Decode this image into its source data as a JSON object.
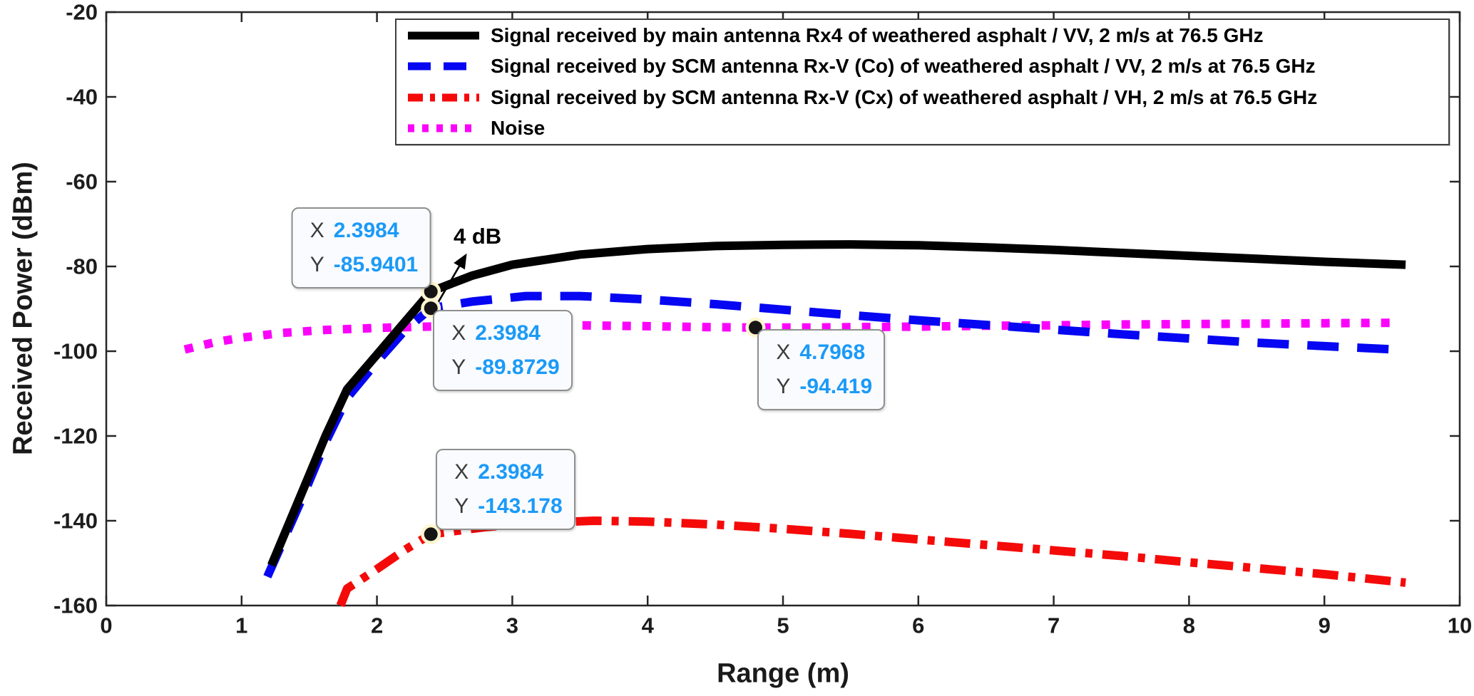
{
  "chart_data": {
    "type": "line",
    "title": "",
    "xlabel": "Range (m)",
    "ylabel": "Received Power (dBm)",
    "xlim": [
      0,
      10
    ],
    "ylim": [
      -160,
      -20
    ],
    "x_ticks": [
      0,
      1,
      2,
      3,
      4,
      5,
      6,
      7,
      8,
      9,
      10
    ],
    "y_ticks": [
      -160,
      -140,
      -120,
      -100,
      -80,
      -60,
      -40,
      -20
    ],
    "grid": false,
    "legend_position": "top-right",
    "axis_color": "#262626",
    "series": [
      {
        "name": "Signal received by main antenna Rx4 of weathered asphalt / VV, 2 m/s at 76.5 GHz",
        "color": "#000000",
        "line_style": "solid",
        "line_width": 12,
        "points": [
          [
            1.22,
            -150.5
          ],
          [
            1.45,
            -133
          ],
          [
            1.62,
            -120
          ],
          [
            1.78,
            -109
          ],
          [
            2.0,
            -100.8
          ],
          [
            2.2,
            -93.3
          ],
          [
            2.3984,
            -85.9401
          ],
          [
            2.7,
            -82.2
          ],
          [
            3.0,
            -79.6
          ],
          [
            3.5,
            -77.2
          ],
          [
            4.0,
            -75.9
          ],
          [
            4.5,
            -75.2
          ],
          [
            5.0,
            -74.9
          ],
          [
            5.5,
            -74.8
          ],
          [
            6.0,
            -75.0
          ],
          [
            6.5,
            -75.5
          ],
          [
            7.0,
            -76.1
          ],
          [
            7.5,
            -76.8
          ],
          [
            8.0,
            -77.5
          ],
          [
            8.5,
            -78.2
          ],
          [
            9.0,
            -78.9
          ],
          [
            9.6,
            -79.6
          ]
        ]
      },
      {
        "name": "Signal received by SCM antenna Rx-V (Co) of weathered asphalt / VV, 2 m/s at 76.5 GHz",
        "color": "#0606f2",
        "line_style": "dashed",
        "line_width": 12,
        "points": [
          [
            1.19,
            -153.2
          ],
          [
            1.45,
            -134.5
          ],
          [
            1.62,
            -121.5
          ],
          [
            1.78,
            -111
          ],
          [
            2.0,
            -102.5
          ],
          [
            2.2,
            -95.3
          ],
          [
            2.3984,
            -89.8729
          ],
          [
            2.7,
            -88.3
          ],
          [
            3.1,
            -87.0
          ],
          [
            3.5,
            -87.0
          ],
          [
            4.0,
            -87.8
          ],
          [
            4.5,
            -88.9
          ],
          [
            5.0,
            -90.2
          ],
          [
            5.5,
            -91.5
          ],
          [
            6.0,
            -92.7
          ],
          [
            6.5,
            -93.8
          ],
          [
            7.0,
            -94.9
          ],
          [
            7.5,
            -96.0
          ],
          [
            8.0,
            -97.0
          ],
          [
            8.5,
            -98.0
          ],
          [
            9.0,
            -98.8
          ],
          [
            9.6,
            -99.7
          ]
        ]
      },
      {
        "name": "Signal received by SCM antenna Rx-V (Cx) of weathered asphalt / VH, 2 m/s at 76.5 GHz",
        "color": "#f50a0a",
        "line_style": "dash-dot",
        "line_width": 12,
        "points": [
          [
            1.73,
            -160
          ],
          [
            1.78,
            -156
          ],
          [
            2.0,
            -151.4
          ],
          [
            2.2,
            -147
          ],
          [
            2.3984,
            -143.178
          ],
          [
            2.8,
            -141.5
          ],
          [
            3.2,
            -140.5
          ],
          [
            3.6,
            -140.0
          ],
          [
            4.0,
            -140.2
          ],
          [
            4.5,
            -140.9
          ],
          [
            5.0,
            -141.9
          ],
          [
            5.5,
            -143.1
          ],
          [
            6.0,
            -144.4
          ],
          [
            6.5,
            -145.7
          ],
          [
            7.0,
            -147.0
          ],
          [
            7.5,
            -148.3
          ],
          [
            8.0,
            -149.8
          ],
          [
            8.5,
            -151.2
          ],
          [
            9.0,
            -152.6
          ],
          [
            9.6,
            -154.6
          ]
        ]
      },
      {
        "name": "Noise",
        "color": "#fb02fb",
        "line_style": "dotted",
        "line_width": 12,
        "points": [
          [
            0.58,
            -99.6
          ],
          [
            0.8,
            -97.9
          ],
          [
            1.0,
            -96.8
          ],
          [
            1.3,
            -95.7
          ],
          [
            1.6,
            -95.0
          ],
          [
            2.0,
            -94.5
          ],
          [
            2.5,
            -94.1
          ],
          [
            3.0,
            -93.9
          ],
          [
            3.5,
            -93.9
          ],
          [
            4.0,
            -94.1
          ],
          [
            4.4,
            -94.3
          ],
          [
            4.7968,
            -94.419
          ],
          [
            5.2,
            -94.4
          ],
          [
            5.6,
            -94.3
          ],
          [
            6.0,
            -94.2
          ],
          [
            6.5,
            -94.0
          ],
          [
            7.0,
            -93.9
          ],
          [
            7.5,
            -93.7
          ],
          [
            8.0,
            -93.6
          ],
          [
            8.5,
            -93.5
          ],
          [
            9.0,
            -93.4
          ],
          [
            9.55,
            -93.3
          ]
        ]
      }
    ],
    "datatips": [
      {
        "x_label": "X",
        "y_label": "Y",
        "x_value": "2.3984",
        "y_value": "-85.9401",
        "x": 2.3984,
        "y": -85.9401,
        "placement": "above-left"
      },
      {
        "x_label": "X",
        "y_label": "Y",
        "x_value": "2.3984",
        "y_value": "-89.8729",
        "x": 2.3984,
        "y": -89.8729,
        "placement": "below-right"
      },
      {
        "x_label": "X",
        "y_label": "Y",
        "x_value": "4.7968",
        "y_value": "-94.419",
        "x": 4.7968,
        "y": -94.419,
        "placement": "below-right"
      },
      {
        "x_label": "X",
        "y_label": "Y",
        "x_value": "2.3984",
        "y_value": "-143.178",
        "x": 2.3984,
        "y": -143.178,
        "placement": "above-right"
      }
    ],
    "annotation": {
      "text": "4 dB"
    }
  }
}
